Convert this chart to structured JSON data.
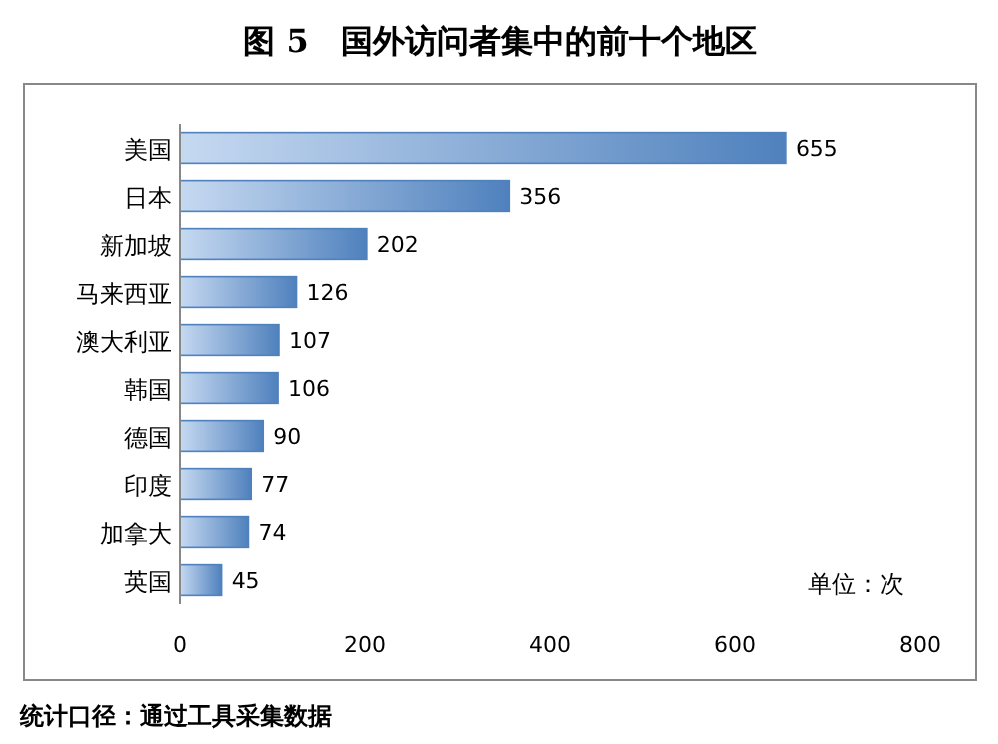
{
  "chart_data": {
    "type": "bar",
    "orientation": "horizontal",
    "title": "图 5　国外访问者集中的前十个地区",
    "categories": [
      "美国",
      "日本",
      "新加坡",
      "马来西亚",
      "澳大利亚",
      "韩国",
      "德国",
      "印度",
      "加拿大",
      "英国"
    ],
    "values": [
      655,
      356,
      202,
      126,
      107,
      106,
      90,
      77,
      74,
      45
    ],
    "color": "#4f81bd",
    "xlim": [
      0,
      800
    ],
    "xticks": [
      0,
      200,
      400,
      600,
      800
    ],
    "data_labels": true,
    "annotations": [
      "单位：次",
      "统计口径：通过工具采集数据"
    ]
  }
}
